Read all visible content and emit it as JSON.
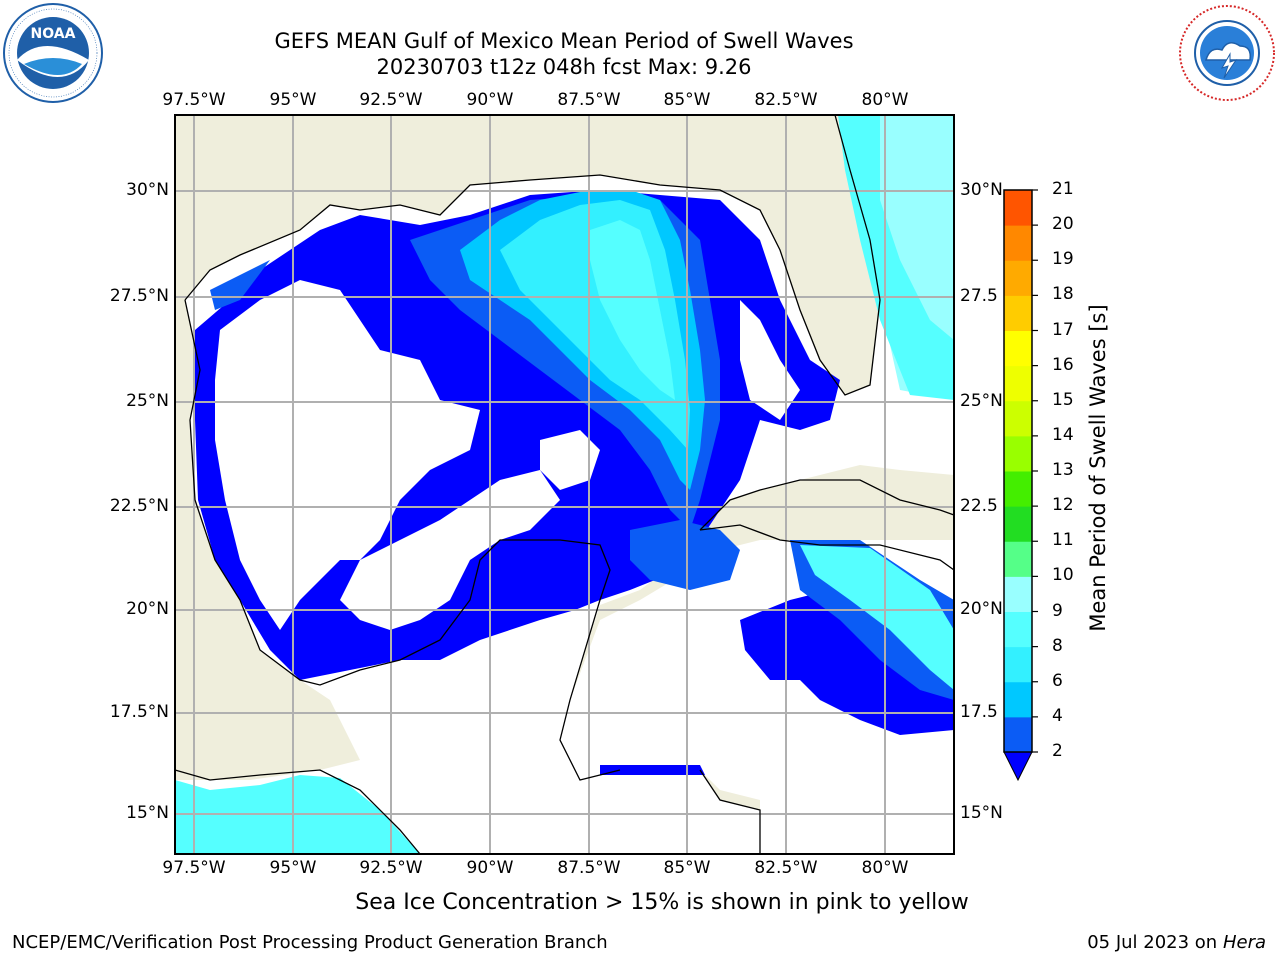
{
  "header": {
    "title_line1": "GEFS MEAN Gulf of Mexico Mean Period of Swell Waves",
    "title_line2": "20230703 t12z 048h fcst   Max: 9.26"
  },
  "logos": {
    "noaa": {
      "text": "NOAA",
      "ring_text": "NATIONAL OCEANIC AND ATMOSPHERIC ADMINISTRATION · U.S. DEPARTMENT OF COMMERCE",
      "color": "#1f5fa8"
    },
    "nws": {
      "ring_text": "NATIONAL WEATHER SERVICE",
      "color": "#d62828"
    }
  },
  "map": {
    "lon_labels": [
      "97.5°W",
      "95°W",
      "92.5°W",
      "90°W",
      "87.5°W",
      "85°W",
      "82.5°W",
      "80°W"
    ],
    "lat_labels_left": [
      "30°N",
      "27.5°N",
      "25°N",
      "22.5°N",
      "20°N",
      "17.5°N",
      "15°N"
    ],
    "lat_labels_right": [
      "30°N",
      "27.5",
      "25°N",
      "22.5",
      "20°N",
      "17.5",
      "15°N"
    ],
    "land_color": "#efeedc",
    "ocean_white": "#ffffff"
  },
  "colorbar": {
    "title": "Mean Period of Swell Waves [s]",
    "ticks": [
      "2",
      "4",
      "6",
      "8",
      "9",
      "10",
      "11",
      "12",
      "13",
      "14",
      "15",
      "16",
      "17",
      "18",
      "19",
      "20",
      "21"
    ],
    "colors": [
      "#0b5cf5",
      "#00c8ff",
      "#33f0ff",
      "#55ffff",
      "#99ffff",
      "#55ff88",
      "#22dd22",
      "#44ee00",
      "#99ff00",
      "#ccff00",
      "#eeff00",
      "#ffff00",
      "#ffcc00",
      "#ffaa00",
      "#ff8800",
      "#ff5500",
      "#ff2200",
      "#ff0000"
    ],
    "under_color": "#0000ff"
  },
  "caption": "Sea Ice Concentration > 15% is shown in pink to yellow",
  "footer": {
    "left": "NCEP/EMC/Verification Post Processing Product Generation Branch",
    "right_date": "05 Jul 2023 on",
    "right_host": "Hera"
  }
}
